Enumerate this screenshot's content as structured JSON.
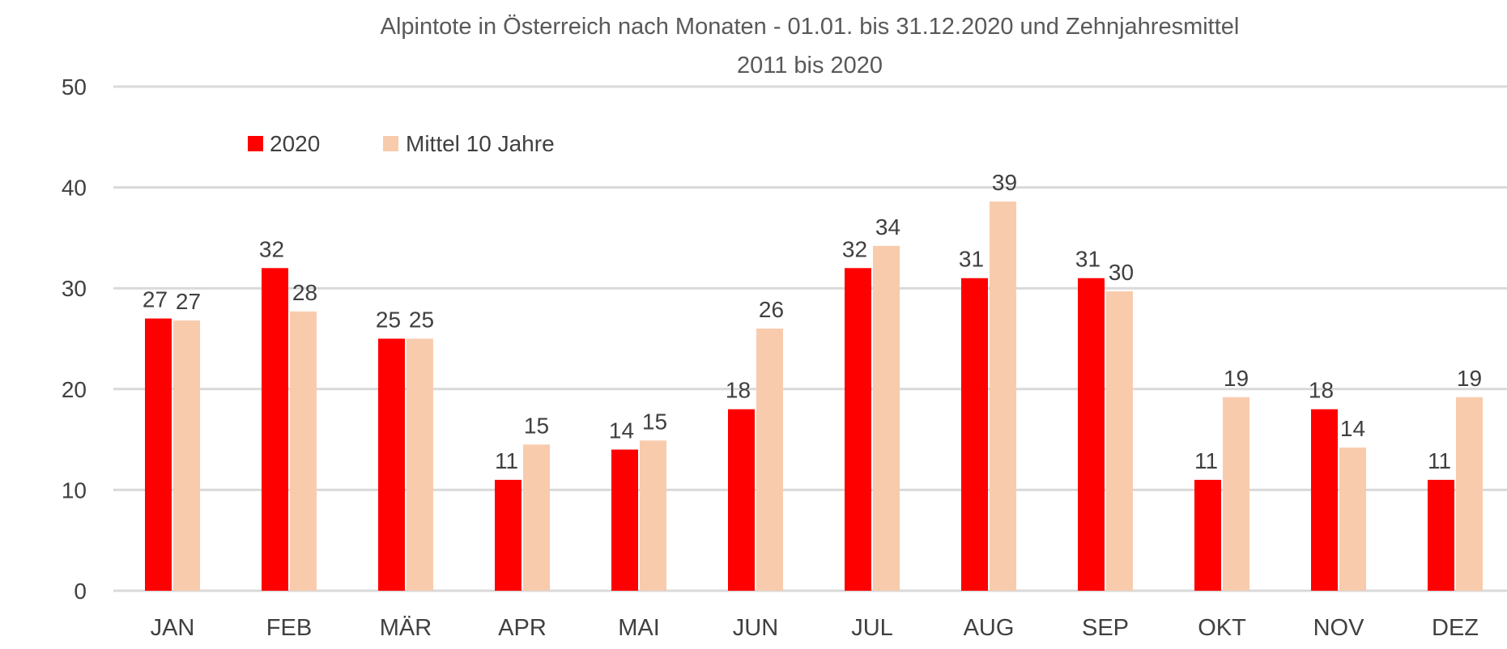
{
  "chart_data": {
    "type": "bar",
    "title_line1": "Alpintote in Österreich nach Monaten - 01.01. bis 31.12.2020 und Zehnjahresmittel",
    "title_line2": "2011 bis 2020",
    "categories": [
      "JAN",
      "FEB",
      "MÄR",
      "APR",
      "MAI",
      "JUN",
      "JUL",
      "AUG",
      "SEP",
      "OKT",
      "NOV",
      "DEZ"
    ],
    "series": [
      {
        "name": "2020",
        "color": "#ff0000",
        "values": [
          27,
          32,
          25,
          11,
          14,
          18,
          32,
          31,
          31,
          11,
          18,
          11
        ]
      },
      {
        "name": "Mittel 10 Jahre",
        "color": "#f8cbad",
        "values": [
          26.8,
          27.7,
          25,
          14.5,
          14.9,
          26,
          34.2,
          38.6,
          29.7,
          19.2,
          14.2,
          19.2
        ]
      }
    ],
    "data_labels": [
      [
        "27",
        "32",
        "25",
        "11",
        "14",
        "18",
        "32",
        "31",
        "31",
        "11",
        "18",
        "11"
      ],
      [
        "27",
        "28",
        "25",
        "15",
        "15",
        "26",
        "34",
        "39",
        "30",
        "19",
        "14",
        "19"
      ]
    ],
    "y_ticks": [
      "0",
      "10",
      "20",
      "30",
      "40",
      "50"
    ],
    "ylim": [
      0,
      50
    ],
    "xlabel": "",
    "ylabel": "",
    "grid": true,
    "legend_position": "top-left",
    "gridline_color": "#d9d9d9"
  }
}
